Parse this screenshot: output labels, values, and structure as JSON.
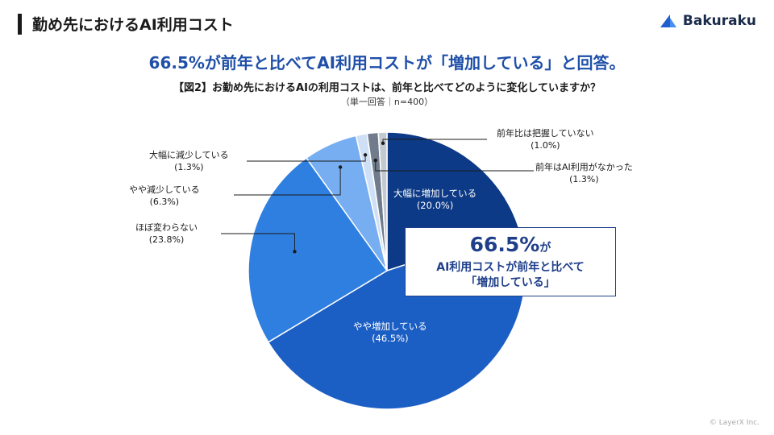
{
  "header": {
    "title": "勤め先におけるAI利用コスト",
    "logo_text": "Bakuraku"
  },
  "headline": "66.5%が前年と比べてAI利用コストが「増加している」と回答。",
  "question": "【図2】お勤め先におけるAIの利用コストは、前年と比べてどのように変化していますか？",
  "sample": "（単一回答｜n=400）",
  "callout": {
    "value": "66.5%",
    "suffix": "が",
    "line1": "AI利用コストが前年と比べて",
    "line2": "「増加している」"
  },
  "copyright": "© LayerX Inc.",
  "colors": {
    "headline": "#1f4fa8",
    "callout_border": "#1f3f8a"
  },
  "chart_data": {
    "type": "pie",
    "title": "【図2】お勤め先におけるAIの利用コストは、前年と比べてどのように変化していますか？",
    "start": "12 o'clock, clockwise",
    "slices": [
      {
        "label": "大幅に増加している",
        "pct_label": "(20.0%)",
        "value": 20.0,
        "color": "#0d3a86"
      },
      {
        "label": "やや増加している",
        "pct_label": "(46.5%)",
        "value": 46.5,
        "color": "#1c5fc4"
      },
      {
        "label": "ほぼ変わらない",
        "pct_label": "(23.8%)",
        "value": 23.8,
        "color": "#2e7fe0"
      },
      {
        "label": "やや減少している",
        "pct_label": "(6.3%)",
        "value": 6.3,
        "color": "#77aef2"
      },
      {
        "label": "大幅に減少している",
        "pct_label": "(1.3%)",
        "value": 1.3,
        "color": "#cfe0f6"
      },
      {
        "label": "前年はAI利用がなかった",
        "pct_label": "(1.3%)",
        "value": 1.3,
        "color": "#707c8c"
      },
      {
        "label": "前年比は把握していない",
        "pct_label": "(1.0%)",
        "value": 1.0,
        "color": "#c3c9d0"
      }
    ]
  }
}
